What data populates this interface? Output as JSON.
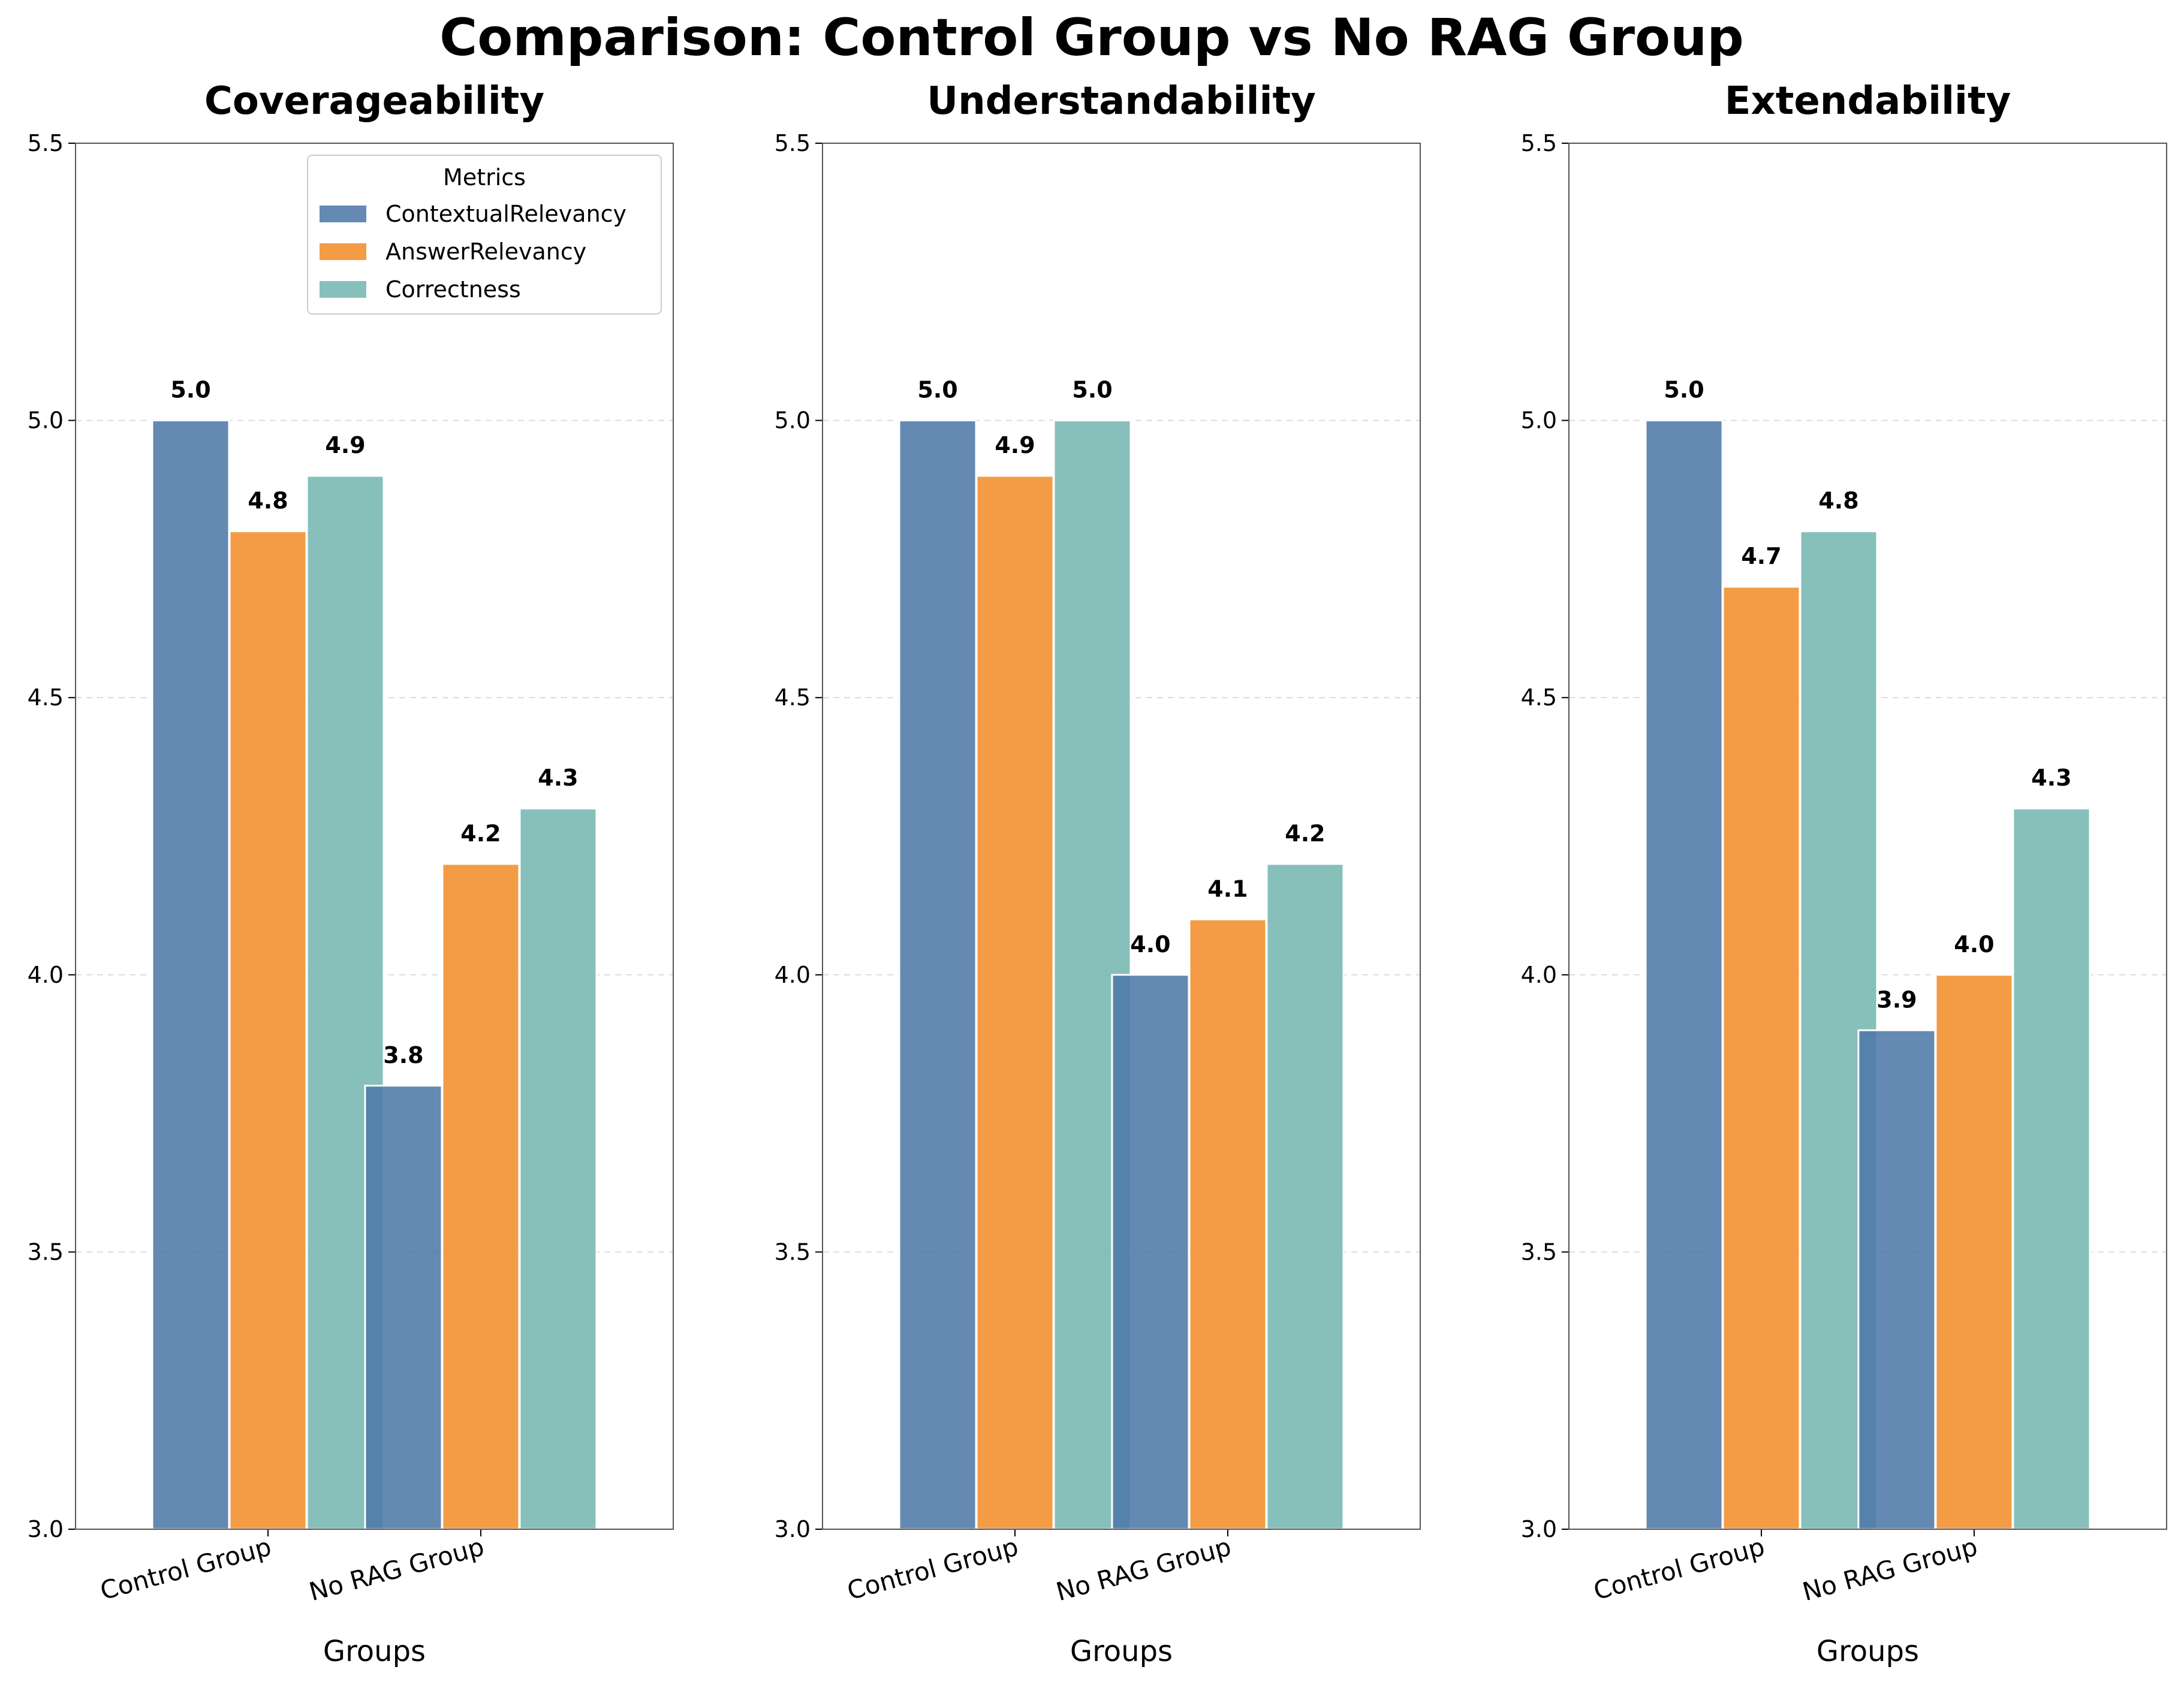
{
  "chart_data": {
    "type": "bar",
    "title": "Comparison: Control Group vs No RAG Group",
    "categories": [
      "Control Group",
      "No RAG Group"
    ],
    "xlabel": "Groups",
    "ylim": [
      3.0,
      5.5
    ],
    "yticks": [
      3.0,
      3.5,
      4.0,
      4.5,
      5.0,
      5.5
    ],
    "grid": "horizontal dashed",
    "legend": {
      "title": "Metrics",
      "placement": "top-right of first panel",
      "entries": [
        "ContextualRelevancy",
        "AnswerRelevancy",
        "Correctness"
      ]
    },
    "colors": [
      "#4e79a7",
      "#f28e2b",
      "#76b7b2"
    ],
    "panels": [
      {
        "title": "Coverageability",
        "series": [
          {
            "name": "ContextualRelevancy",
            "values": [
              5.0,
              3.8
            ]
          },
          {
            "name": "AnswerRelevancy",
            "values": [
              4.8,
              4.2
            ]
          },
          {
            "name": "Correctness",
            "values": [
              4.9,
              4.3
            ]
          }
        ]
      },
      {
        "title": "Understandability",
        "series": [
          {
            "name": "ContextualRelevancy",
            "values": [
              5.0,
              4.0
            ]
          },
          {
            "name": "AnswerRelevancy",
            "values": [
              4.9,
              4.1
            ]
          },
          {
            "name": "Correctness",
            "values": [
              5.0,
              4.2
            ]
          }
        ]
      },
      {
        "title": "Extendability",
        "series": [
          {
            "name": "ContextualRelevancy",
            "values": [
              5.0,
              3.9
            ]
          },
          {
            "name": "AnswerRelevancy",
            "values": [
              4.7,
              4.0
            ]
          },
          {
            "name": "Correctness",
            "values": [
              4.8,
              4.3
            ]
          }
        ]
      }
    ]
  }
}
